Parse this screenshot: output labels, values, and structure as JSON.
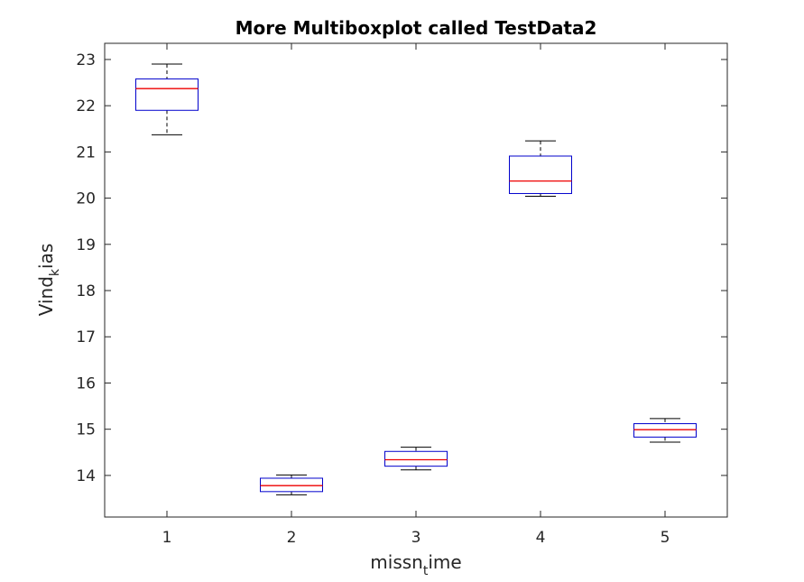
{
  "chart_data": {
    "type": "boxplot",
    "title": "More Multiboxplot called TestData2",
    "xlabel": {
      "base": "missn",
      "sub": "t",
      "rest": "ime"
    },
    "ylabel": {
      "base": "Vind",
      "sub": "k",
      "rest": "ias"
    },
    "categories": [
      "1",
      "2",
      "3",
      "4",
      "5"
    ],
    "ylim": [
      13.1,
      23.35
    ],
    "yticks": [
      14,
      15,
      16,
      17,
      18,
      19,
      20,
      21,
      22,
      23
    ],
    "grid": false,
    "boxes": [
      {
        "category": "1",
        "whisker_low": 21.37,
        "q1": 21.9,
        "median": 22.37,
        "q3": 22.58,
        "whisker_high": 22.9
      },
      {
        "category": "2",
        "whisker_low": 13.58,
        "q1": 13.65,
        "median": 13.78,
        "q3": 13.94,
        "whisker_high": 14.01
      },
      {
        "category": "3",
        "whisker_low": 14.12,
        "q1": 14.2,
        "median": 14.34,
        "q3": 14.52,
        "whisker_high": 14.61
      },
      {
        "category": "4",
        "whisker_low": 20.04,
        "q1": 20.1,
        "median": 20.37,
        "q3": 20.91,
        "whisker_high": 21.24
      },
      {
        "category": "5",
        "whisker_low": 14.72,
        "q1": 14.83,
        "median": 14.99,
        "q3": 15.12,
        "whisker_high": 15.23
      }
    ],
    "colors": {
      "box": "#0000cc",
      "median": "#ee0000",
      "whisker": "#000000",
      "axis": "#262626"
    }
  }
}
